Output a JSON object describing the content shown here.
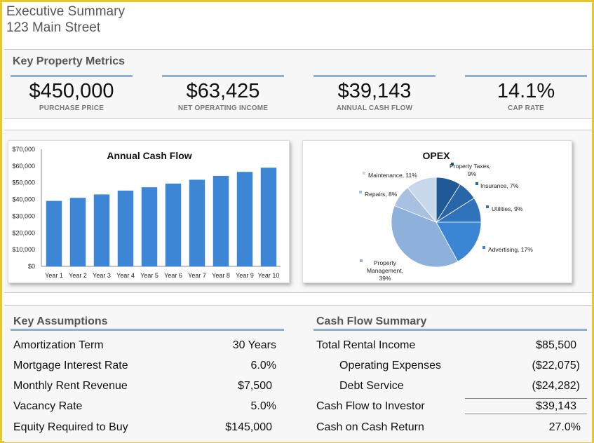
{
  "header": {
    "title": "Executive Summary",
    "address": "123 Main Street"
  },
  "metrics": {
    "heading": "Key Property Metrics",
    "items": [
      {
        "value": "$450,000",
        "label": "PURCHASE PRICE"
      },
      {
        "value": "$63,425",
        "label": "NET OPERATING INCOME"
      },
      {
        "value": "$39,143",
        "label": "ANNUAL CASH FLOW"
      },
      {
        "value": "14.1%",
        "label": "CAP RATE"
      }
    ]
  },
  "colors": {
    "accent": "#8fb0d6",
    "frame": "#e8c72a",
    "bar": "#3d86d6"
  },
  "chart_data": [
    {
      "type": "bar",
      "title": "Annual Cash Flow",
      "categories": [
        "Year 1",
        "Year 2",
        "Year 3",
        "Year 4",
        "Year 5",
        "Year 6",
        "Year 7",
        "Year 8",
        "Year 9",
        "Year 10"
      ],
      "values": [
        39143,
        41000,
        43000,
        45300,
        47300,
        49500,
        51800,
        54100,
        56500,
        59000
      ],
      "ylim": [
        0,
        70000
      ],
      "yticks": [
        "$0",
        "$10,000",
        "$20,000",
        "$30,000",
        "$40,000",
        "$50,000",
        "$60,000",
        "$70,000"
      ],
      "xlabel": "",
      "ylabel": ""
    },
    {
      "type": "pie",
      "title": "OPEX",
      "slices": [
        {
          "label": "Property Taxes,",
          "label2": "9%",
          "value": 9,
          "color": "#1f5a97"
        },
        {
          "label": "Insurance, 7%",
          "label2": "",
          "value": 7,
          "color": "#2866a8"
        },
        {
          "label": "Utilities, 9%",
          "label2": "",
          "value": 9,
          "color": "#2f73bb"
        },
        {
          "label": "Advertising, 17%",
          "label2": "",
          "value": 17,
          "color": "#3b86d4"
        },
        {
          "label": "Property",
          "label2": "Management,",
          "label3": "39%",
          "value": 39,
          "color": "#8eb1db"
        },
        {
          "label": "Repairs, 8%",
          "label2": "",
          "value": 8,
          "color": "#a9c1e1"
        },
        {
          "label": "Maintenance, 11%",
          "label2": "",
          "value": 11,
          "color": "#c9d7ea"
        }
      ]
    }
  ],
  "assumptions": {
    "heading": "Key Assumptions",
    "rows": [
      {
        "label": "Amortization Term",
        "value": "30 Years"
      },
      {
        "label": "Mortgage Interest Rate",
        "value": "6.0%"
      },
      {
        "label": "Monthly Rent Revenue",
        "value": "$7,500"
      },
      {
        "label": "Vacancy Rate",
        "value": "5.0%"
      },
      {
        "label": "Equity Required to Buy",
        "value": "$145,000"
      }
    ]
  },
  "cashflow": {
    "heading": "Cash Flow Summary",
    "rows": [
      {
        "label": "Total Rental Income",
        "value": "$85,500"
      },
      {
        "label": "Operating Expenses",
        "value": "($22,075)"
      },
      {
        "label": "Debt Service",
        "value": "($24,282)"
      },
      {
        "label": "Cash Flow to Investor",
        "value": "$39,143"
      },
      {
        "label": "Cash on Cash Return",
        "value": "27.0%"
      }
    ]
  }
}
